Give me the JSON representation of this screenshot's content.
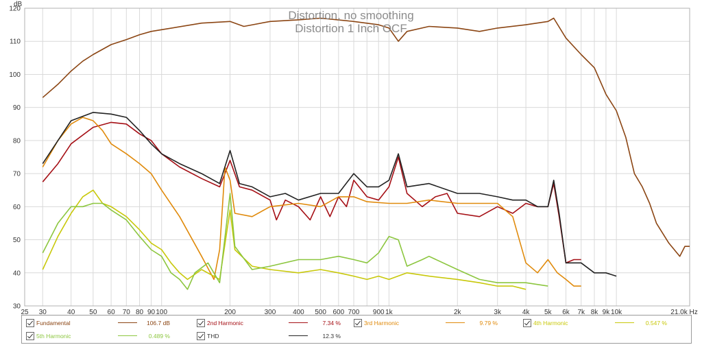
{
  "chart_data": {
    "type": "line",
    "title": "Distortion, no smoothing",
    "subtitle": "Distortion 1 Inch OCF",
    "xscale": "log",
    "xlim": [
      25,
      21000
    ],
    "ylim": [
      30,
      120
    ],
    "yunit": "dB",
    "xunit": "Hz",
    "grid": true,
    "legend_position": "bottom",
    "x_ticks": [
      25,
      30,
      40,
      50,
      60,
      70,
      80,
      90,
      100,
      200,
      300,
      400,
      500,
      600,
      700,
      800,
      900,
      1000,
      2000,
      3000,
      4000,
      5000,
      6000,
      7000,
      8000,
      9000,
      10000,
      21000
    ],
    "x_tick_labels": [
      "25",
      "30",
      "40",
      "50",
      "60",
      "70",
      "80",
      "90",
      "100",
      "200",
      "300",
      "400",
      "500",
      "600",
      "700",
      "900",
      "1k",
      "2k",
      "3k",
      "4k",
      "5k",
      "6k",
      "7k",
      "8k",
      "9k",
      "10k",
      "21.0k Hz"
    ],
    "x_tick_label_values": [
      25,
      30,
      40,
      50,
      60,
      70,
      80,
      90,
      100,
      200,
      300,
      400,
      500,
      600,
      700,
      900,
      1000,
      2000,
      3000,
      4000,
      5000,
      6000,
      7000,
      8000,
      9000,
      10000,
      21000
    ],
    "y_ticks": [
      30,
      40,
      50,
      60,
      70,
      80,
      90,
      100,
      110,
      120
    ],
    "series": [
      {
        "name": "Fundamental",
        "value": "106.7 dB",
        "color": "#8b4513",
        "points": [
          [
            30,
            93
          ],
          [
            35,
            97
          ],
          [
            40,
            101
          ],
          [
            45,
            104
          ],
          [
            50,
            106
          ],
          [
            60,
            109
          ],
          [
            70,
            110.5
          ],
          [
            80,
            112
          ],
          [
            90,
            113
          ],
          [
            100,
            113.5
          ],
          [
            150,
            115.5
          ],
          [
            200,
            116
          ],
          [
            230,
            114.5
          ],
          [
            300,
            116
          ],
          [
            400,
            116.5
          ],
          [
            500,
            117
          ],
          [
            700,
            116
          ],
          [
            900,
            115
          ],
          [
            1000,
            114
          ],
          [
            1100,
            110
          ],
          [
            1200,
            113
          ],
          [
            1500,
            114.5
          ],
          [
            2000,
            114
          ],
          [
            2500,
            113
          ],
          [
            3000,
            114
          ],
          [
            4000,
            115
          ],
          [
            5000,
            116
          ],
          [
            5300,
            117
          ],
          [
            6000,
            111
          ],
          [
            7000,
            106
          ],
          [
            8000,
            102
          ],
          [
            9000,
            94
          ],
          [
            10000,
            89
          ],
          [
            11000,
            81
          ],
          [
            12000,
            70
          ],
          [
            13000,
            66
          ],
          [
            14000,
            61
          ],
          [
            15000,
            55
          ],
          [
            17000,
            49
          ],
          [
            19000,
            45
          ],
          [
            20000,
            48
          ],
          [
            21000,
            48
          ]
        ]
      },
      {
        "name": "2nd Harmonic",
        "value": "7.34 %",
        "color": "#a50f15",
        "points": [
          [
            30,
            67.5
          ],
          [
            35,
            73
          ],
          [
            40,
            79
          ],
          [
            50,
            84
          ],
          [
            60,
            85.5
          ],
          [
            70,
            85
          ],
          [
            80,
            82
          ],
          [
            90,
            80
          ],
          [
            100,
            76
          ],
          [
            120,
            72
          ],
          [
            150,
            68.5
          ],
          [
            180,
            66
          ],
          [
            200,
            74
          ],
          [
            220,
            66
          ],
          [
            250,
            65
          ],
          [
            300,
            62
          ],
          [
            320,
            56
          ],
          [
            350,
            62
          ],
          [
            400,
            60
          ],
          [
            450,
            56
          ],
          [
            500,
            63
          ],
          [
            550,
            57
          ],
          [
            600,
            63
          ],
          [
            650,
            60
          ],
          [
            700,
            68
          ],
          [
            800,
            63
          ],
          [
            900,
            62
          ],
          [
            1000,
            66
          ],
          [
            1100,
            75
          ],
          [
            1200,
            64
          ],
          [
            1400,
            60
          ],
          [
            1600,
            63
          ],
          [
            1800,
            64
          ],
          [
            2000,
            58
          ],
          [
            2500,
            57
          ],
          [
            3000,
            60
          ],
          [
            3500,
            58
          ],
          [
            4000,
            61
          ],
          [
            4500,
            60
          ],
          [
            5000,
            60
          ],
          [
            5300,
            67
          ],
          [
            5600,
            57
          ],
          [
            6000,
            43
          ],
          [
            6500,
            44
          ],
          [
            7000,
            44
          ]
        ]
      },
      {
        "name": "3rd Harmonic",
        "value": "9.79 %",
        "color": "#e08a0b",
        "points": [
          [
            30,
            72
          ],
          [
            35,
            80
          ],
          [
            40,
            85
          ],
          [
            45,
            87
          ],
          [
            50,
            86
          ],
          [
            55,
            83
          ],
          [
            60,
            79
          ],
          [
            70,
            76
          ],
          [
            80,
            73
          ],
          [
            90,
            70
          ],
          [
            100,
            65
          ],
          [
            120,
            57
          ],
          [
            150,
            45
          ],
          [
            170,
            38
          ],
          [
            180,
            47
          ],
          [
            190,
            72
          ],
          [
            200,
            68
          ],
          [
            210,
            58
          ],
          [
            250,
            57
          ],
          [
            300,
            60
          ],
          [
            400,
            61
          ],
          [
            500,
            60
          ],
          [
            600,
            63
          ],
          [
            700,
            63
          ],
          [
            800,
            61.5
          ],
          [
            1000,
            61
          ],
          [
            1200,
            61
          ],
          [
            1500,
            62
          ],
          [
            2000,
            61
          ],
          [
            3000,
            61
          ],
          [
            3500,
            57
          ],
          [
            4000,
            43
          ],
          [
            4500,
            40
          ],
          [
            5000,
            44
          ],
          [
            5500,
            40
          ],
          [
            6000,
            38
          ],
          [
            6500,
            36
          ],
          [
            7000,
            36
          ]
        ]
      },
      {
        "name": "4th Harmonic",
        "value": "0.547 %",
        "color": "#c8c80a",
        "points": [
          [
            30,
            41
          ],
          [
            35,
            51
          ],
          [
            40,
            58
          ],
          [
            45,
            63
          ],
          [
            50,
            65
          ],
          [
            55,
            61
          ],
          [
            60,
            60
          ],
          [
            70,
            57
          ],
          [
            80,
            53
          ],
          [
            90,
            49
          ],
          [
            100,
            47
          ],
          [
            110,
            43
          ],
          [
            120,
            40
          ],
          [
            130,
            38
          ],
          [
            150,
            41
          ],
          [
            180,
            38
          ],
          [
            200,
            59
          ],
          [
            210,
            47
          ],
          [
            250,
            42
          ],
          [
            300,
            41
          ],
          [
            400,
            40
          ],
          [
            500,
            41
          ],
          [
            600,
            40
          ],
          [
            700,
            39
          ],
          [
            800,
            38
          ],
          [
            900,
            39
          ],
          [
            1000,
            38
          ],
          [
            1200,
            40
          ],
          [
            1500,
            39
          ],
          [
            2000,
            38
          ],
          [
            2500,
            37
          ],
          [
            3000,
            36
          ],
          [
            3500,
            36
          ],
          [
            4000,
            35
          ]
        ]
      },
      {
        "name": "5th Harmonic",
        "value": "0.489 %",
        "color": "#8cc63f",
        "points": [
          [
            30,
            46
          ],
          [
            35,
            55
          ],
          [
            40,
            60
          ],
          [
            45,
            60
          ],
          [
            50,
            61
          ],
          [
            55,
            61
          ],
          [
            60,
            59
          ],
          [
            70,
            56
          ],
          [
            80,
            51
          ],
          [
            90,
            47
          ],
          [
            100,
            45
          ],
          [
            110,
            40
          ],
          [
            120,
            38
          ],
          [
            130,
            35
          ],
          [
            140,
            40
          ],
          [
            160,
            43
          ],
          [
            180,
            37
          ],
          [
            200,
            64
          ],
          [
            210,
            48
          ],
          [
            250,
            41
          ],
          [
            300,
            42
          ],
          [
            400,
            44
          ],
          [
            500,
            44
          ],
          [
            600,
            45
          ],
          [
            700,
            44
          ],
          [
            800,
            43
          ],
          [
            900,
            46
          ],
          [
            1000,
            51
          ],
          [
            1100,
            50
          ],
          [
            1200,
            42
          ],
          [
            1400,
            44
          ],
          [
            1500,
            45
          ],
          [
            2000,
            41
          ],
          [
            2500,
            38
          ],
          [
            3000,
            37
          ],
          [
            4000,
            37
          ],
          [
            5000,
            36
          ]
        ]
      },
      {
        "name": "THD",
        "value": "12.3 %",
        "color": "#222222",
        "points": [
          [
            30,
            73
          ],
          [
            35,
            80
          ],
          [
            40,
            86
          ],
          [
            50,
            88.5
          ],
          [
            60,
            88
          ],
          [
            70,
            87
          ],
          [
            80,
            83
          ],
          [
            90,
            79
          ],
          [
            100,
            76
          ],
          [
            120,
            73
          ],
          [
            150,
            70
          ],
          [
            180,
            67
          ],
          [
            200,
            77
          ],
          [
            220,
            67
          ],
          [
            250,
            66
          ],
          [
            300,
            63
          ],
          [
            350,
            64
          ],
          [
            400,
            62
          ],
          [
            500,
            64
          ],
          [
            600,
            64
          ],
          [
            700,
            70
          ],
          [
            800,
            66
          ],
          [
            900,
            66
          ],
          [
            1000,
            68
          ],
          [
            1100,
            76
          ],
          [
            1200,
            66
          ],
          [
            1500,
            67
          ],
          [
            2000,
            64
          ],
          [
            2500,
            64
          ],
          [
            3000,
            63
          ],
          [
            3500,
            62
          ],
          [
            4000,
            62
          ],
          [
            4500,
            60
          ],
          [
            5000,
            60
          ],
          [
            5300,
            68
          ],
          [
            5600,
            58
          ],
          [
            6000,
            43
          ],
          [
            7000,
            43
          ],
          [
            8000,
            40
          ],
          [
            9000,
            40
          ],
          [
            10000,
            39
          ]
        ]
      }
    ]
  }
}
